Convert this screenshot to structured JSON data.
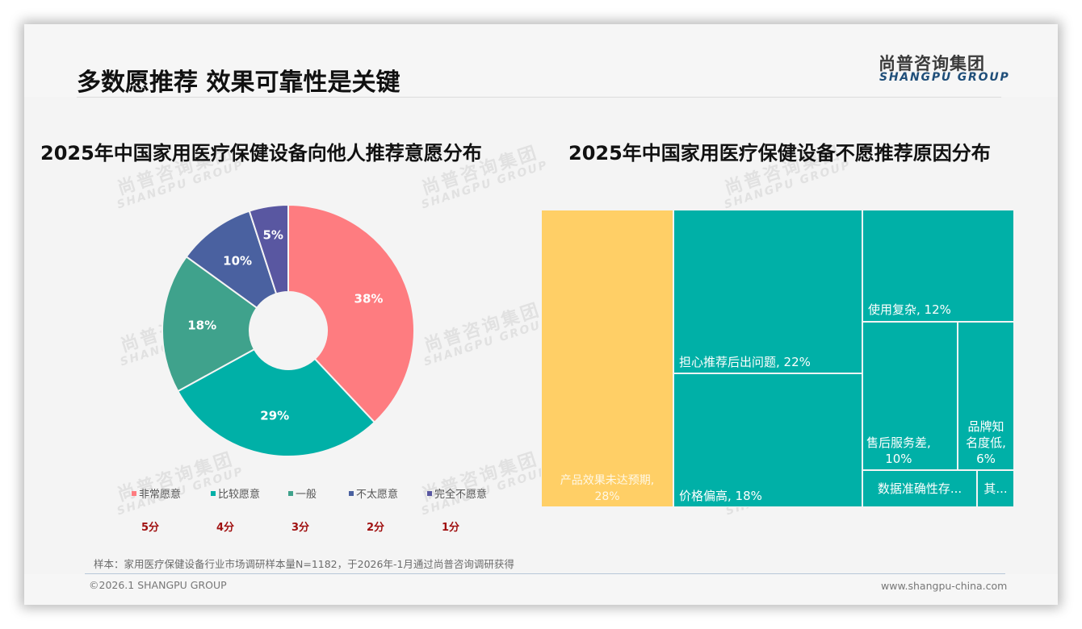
{
  "page": {
    "title": "多数愿推荐 效果可靠性是关键",
    "logo": {
      "cn": "尚普咨询集团",
      "en": "SHANGPU GROUP"
    },
    "watermark": {
      "cn": "尚普咨询集团",
      "en": "SHANGPU GROUP"
    },
    "sample_note": "样本：家用医疗保健设备行业市场调研样本量N=1182，于2026年-1月通过尚普咨询调研获得",
    "copyright": "©2026.1 SHANGPU GROUP",
    "website": "www.shangpu-china.com"
  },
  "chart_data": [
    {
      "type": "pie",
      "variant": "donut",
      "title": "2025年中国家用医疗保健设备向他人推荐意愿分布",
      "categories": [
        "非常愿意",
        "比较愿意",
        "一般",
        "不太愿意",
        "完全不愿意"
      ],
      "values": [
        38,
        29,
        18,
        10,
        5
      ],
      "labels": [
        "38%",
        "29%",
        "18%",
        "10%",
        "5%"
      ],
      "colors": [
        "#fe7c80",
        "#00b0a7",
        "#3fa28c",
        "#4a61a0",
        "#5957a1"
      ],
      "scores": [
        "5分",
        "4分",
        "3分",
        "2分",
        "1分"
      ],
      "legend_position": "bottom",
      "unit": "%"
    },
    {
      "type": "treemap",
      "title": "2025年中国家用医疗保健设备不愿推荐原因分布",
      "items": [
        {
          "name": "产品效果未达预期",
          "value": 28,
          "label": "产品效果未达预期,",
          "value_label": "28%",
          "color": "#ffcf66"
        },
        {
          "name": "担心推荐后出问题",
          "value": 22,
          "label": "担心推荐后出问题, 22%",
          "color": "#00b0a7"
        },
        {
          "name": "价格偏高",
          "value": 18,
          "label": "价格偏高, 18%",
          "color": "#00b0a7"
        },
        {
          "name": "使用复杂",
          "value": 12,
          "label": "使用复杂, 12%",
          "color": "#00b0a7"
        },
        {
          "name": "售后服务差",
          "value": 10,
          "label": "售后服务差,",
          "value_label": "10%",
          "color": "#00b0a7"
        },
        {
          "name": "品牌知名度低",
          "value": 6,
          "label": "品牌知",
          "label2": "名度低,",
          "value_label": "6%",
          "color": "#00b0a7"
        },
        {
          "name": "数据准确性存...",
          "value": 3,
          "label": "数据准确性存...",
          "color": "#00b0a7"
        },
        {
          "name": "其...",
          "value": 1,
          "label": "其...",
          "color": "#00b0a7"
        }
      ]
    }
  ]
}
